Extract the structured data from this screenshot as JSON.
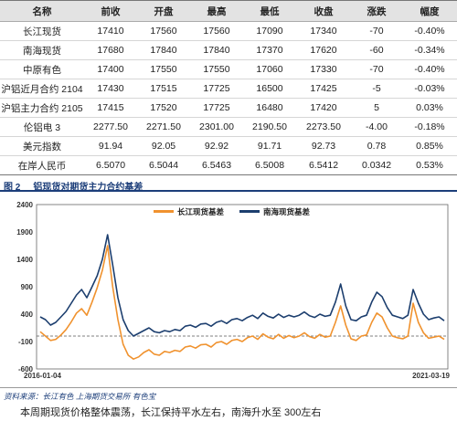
{
  "table": {
    "headers": [
      "名称",
      "前收",
      "开盘",
      "最高",
      "最低",
      "收盘",
      "涨跌",
      "幅度"
    ],
    "rows": [
      [
        "长江现货",
        "17410",
        "17560",
        "17560",
        "17090",
        "17340",
        "-70",
        "-0.40%"
      ],
      [
        "南海现货",
        "17680",
        "17840",
        "17840",
        "17370",
        "17620",
        "-60",
        "-0.34%"
      ],
      [
        "中原有色",
        "17400",
        "17550",
        "17550",
        "17060",
        "17330",
        "-70",
        "-0.40%"
      ],
      [
        "沪铝近月合约 2104",
        "17430",
        "17515",
        "17725",
        "16500",
        "17425",
        "-5",
        "-0.03%"
      ],
      [
        "沪铝主力合约 2105",
        "17415",
        "17520",
        "17725",
        "16480",
        "17420",
        "5",
        "0.03%"
      ],
      [
        "伦铝电 3",
        "2277.50",
        "2271.50",
        "2301.00",
        "2190.50",
        "2273.50",
        "-4.00",
        "-0.18%"
      ],
      [
        "美元指数",
        "91.94",
        "92.05",
        "92.92",
        "91.71",
        "92.73",
        "0.78",
        "0.85%"
      ],
      [
        "在岸人民币",
        "6.5070",
        "6.5044",
        "6.5463",
        "6.5008",
        "6.5412",
        "0.0342",
        "0.53%"
      ]
    ]
  },
  "figure": {
    "label": "图 2",
    "title": "铝现货对期货主力合约基差"
  },
  "source_note": "资料来源：长江有色    上海期货交易所    有色宝",
  "caption": "本周期现货价格整体震荡，长江保持平水左右，南海升水至 300左右",
  "chart_data": {
    "type": "line",
    "x_start_label": "2016-01-04",
    "x_end_label": "2021-03-19",
    "yticks": [
      2400,
      1900,
      1400,
      900,
      400,
      -100,
      -600
    ],
    "ylim": [
      -600,
      2400
    ],
    "series": [
      {
        "name": "长江现货基差",
        "color": "#f0922e",
        "values": [
          80,
          0,
          -80,
          -60,
          20,
          120,
          260,
          420,
          500,
          380,
          620,
          880,
          1200,
          1650,
          900,
          300,
          -150,
          -350,
          -420,
          -380,
          -300,
          -250,
          -330,
          -350,
          -280,
          -300,
          -260,
          -280,
          -200,
          -180,
          -220,
          -160,
          -150,
          -200,
          -120,
          -100,
          -150,
          -80,
          -60,
          -100,
          -30,
          0,
          -60,
          40,
          -20,
          -50,
          30,
          -40,
          10,
          -30,
          0,
          60,
          -10,
          -40,
          30,
          -20,
          0,
          250,
          550,
          200,
          -50,
          -80,
          0,
          20,
          250,
          420,
          350,
          150,
          0,
          -30,
          -50,
          0,
          600,
          250,
          60,
          -40,
          -20,
          0,
          -60
        ]
      },
      {
        "name": "南海现货基差",
        "color": "#1c3e6e",
        "values": [
          350,
          300,
          200,
          250,
          350,
          450,
          600,
          750,
          850,
          700,
          900,
          1100,
          1400,
          1850,
          1300,
          700,
          300,
          100,
          0,
          50,
          100,
          150,
          80,
          60,
          100,
          80,
          120,
          100,
          180,
          200,
          160,
          220,
          230,
          180,
          250,
          280,
          230,
          300,
          320,
          280,
          340,
          380,
          320,
          420,
          360,
          330,
          400,
          340,
          380,
          350,
          380,
          440,
          370,
          340,
          400,
          360,
          380,
          620,
          950,
          550,
          300,
          280,
          350,
          380,
          620,
          800,
          720,
          520,
          380,
          350,
          320,
          380,
          850,
          600,
          400,
          300,
          330,
          350,
          280
        ]
      }
    ]
  }
}
